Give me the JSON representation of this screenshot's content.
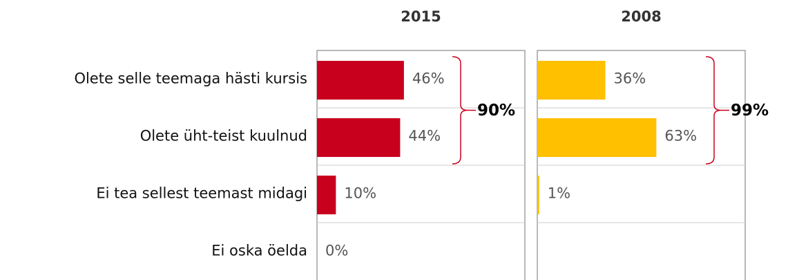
{
  "chart_data": {
    "type": "bar",
    "categories": [
      "Olete selle teemaga hästi kursis",
      "Olete üht-teist kuulnud",
      "Ei tea sellest teemast midagi",
      "Ei oska öelda"
    ],
    "xlim": [
      0,
      110
    ],
    "series": [
      {
        "name": "2015",
        "color": "#c8001e",
        "values": [
          46,
          44,
          10,
          0
        ],
        "value_labels": [
          "46%",
          "44%",
          "10%",
          "0%"
        ],
        "bracket": {
          "value": 90,
          "label": "90%"
        }
      },
      {
        "name": "2008",
        "color": "#ffc000",
        "values": [
          36,
          63,
          1,
          null
        ],
        "value_labels": [
          "36%",
          "63%",
          "1%",
          null
        ],
        "bracket": {
          "value": 99,
          "label": "99%"
        }
      }
    ]
  }
}
